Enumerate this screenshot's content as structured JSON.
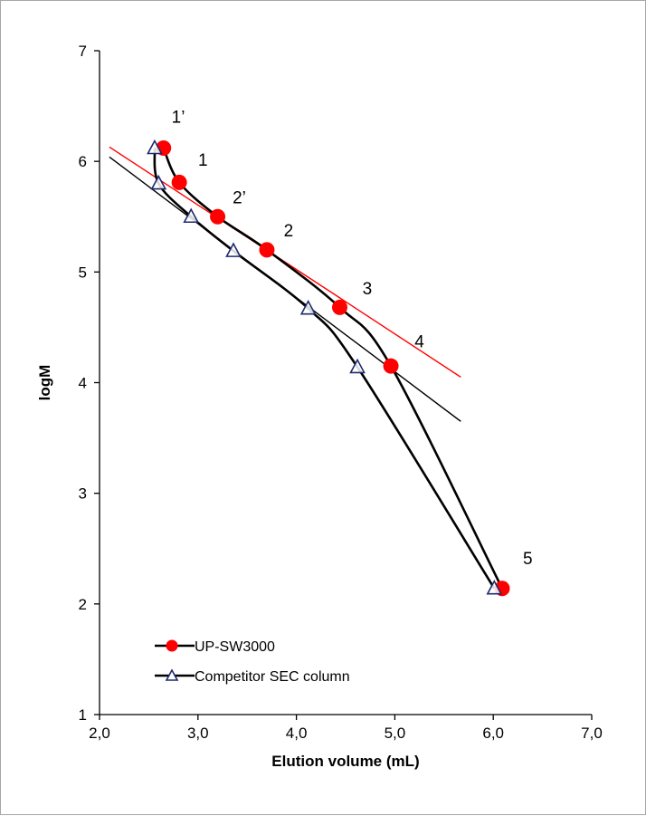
{
  "chart_data": {
    "type": "scatter",
    "xlabel": "Elution volume (mL)",
    "ylabel": "logM",
    "xlim": [
      2.0,
      7.0
    ],
    "ylim": [
      1,
      7
    ],
    "x_ticks": [
      "2,0",
      "3,0",
      "4,0",
      "5,0",
      "6,0",
      "7,0"
    ],
    "y_ticks": [
      "1",
      "2",
      "3",
      "4",
      "5",
      "6",
      "7"
    ],
    "grid": false,
    "legend_position": "bottom-left",
    "series": [
      {
        "name": "UP-SW3000",
        "marker": "filled-circle",
        "color": "#ff0000",
        "x": [
          2.65,
          2.81,
          3.2,
          3.7,
          4.44,
          4.96,
          6.09
        ],
        "y": [
          6.12,
          5.81,
          5.5,
          5.2,
          4.68,
          4.15,
          2.14
        ],
        "trendline": {
          "color": "#ff0000",
          "from": [
            2.1,
            6.13
          ],
          "to": [
            5.67,
            4.05
          ]
        }
      },
      {
        "name": "Competitor SEC column",
        "marker": "open-triangle",
        "color": "#1f2a6e",
        "x": [
          2.56,
          2.6,
          2.93,
          3.36,
          4.12,
          4.62,
          6.01
        ],
        "y": [
          6.12,
          5.8,
          5.5,
          5.19,
          4.67,
          4.14,
          2.14
        ],
        "trendline": {
          "color": "#000000",
          "from": [
            2.1,
            6.04
          ],
          "to": [
            5.67,
            3.65
          ]
        }
      }
    ],
    "annotations": [
      {
        "text": "1’",
        "x": 2.8,
        "y": 6.35
      },
      {
        "text": "1",
        "x": 3.05,
        "y": 5.96
      },
      {
        "text": "2’",
        "x": 3.42,
        "y": 5.62
      },
      {
        "text": "2",
        "x": 3.92,
        "y": 5.32
      },
      {
        "text": "3",
        "x": 4.72,
        "y": 4.8
      },
      {
        "text": "4",
        "x": 5.25,
        "y": 4.32
      },
      {
        "text": "5",
        "x": 6.35,
        "y": 2.36
      }
    ]
  }
}
